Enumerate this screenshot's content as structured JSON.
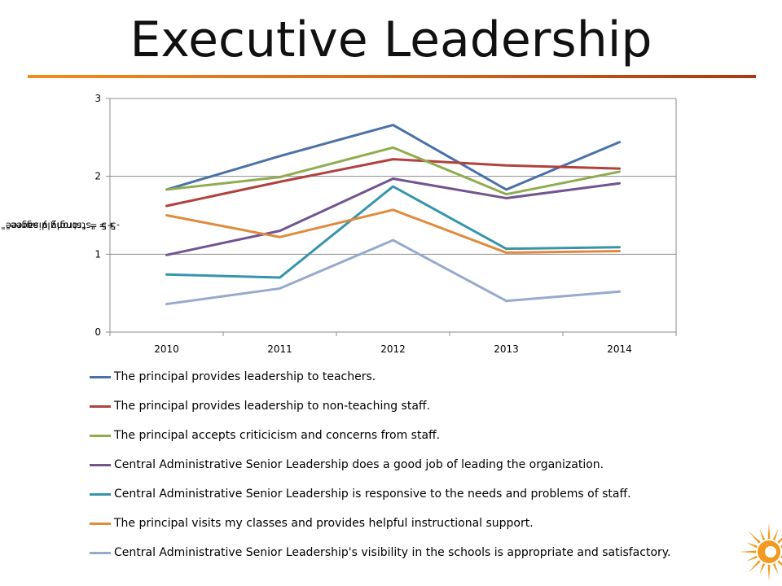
{
  "slide": {
    "title": "Executive Leadership"
  },
  "chart_data": {
    "type": "line",
    "categories": [
      "2010",
      "2011",
      "2012",
      "2013",
      "2014"
    ],
    "ylabel_top": "+5 = \"strongly agree\"",
    "ylabel_bottom": "-5 = \"strongly disagree\"",
    "ylim": [
      0,
      3
    ],
    "yticks": [
      0,
      1,
      2,
      3
    ],
    "grid": true,
    "legend_position": "bottom",
    "series": [
      {
        "name": "The principal provides leadership to teachers.",
        "color": "#4a72a8",
        "values": [
          1.83,
          2.26,
          2.66,
          1.83,
          2.44
        ]
      },
      {
        "name": "The principal provides leadership to non-teaching staff.",
        "color": "#b0413e",
        "values": [
          1.62,
          1.93,
          2.22,
          2.14,
          2.1
        ]
      },
      {
        "name": "The principal accepts criticicism and concerns from staff.",
        "color": "#8fad4e",
        "values": [
          1.83,
          1.99,
          2.37,
          1.77,
          2.06
        ]
      },
      {
        "name": "Central Administrative Senior Leadership does a good job of leading the organization.",
        "color": "#715490",
        "values": [
          0.99,
          1.3,
          1.97,
          1.72,
          1.91
        ]
      },
      {
        "name": "Central Administrative Senior Leadership is responsive to the needs and problems of staff.",
        "color": "#3795ab",
        "values": [
          0.74,
          0.7,
          1.87,
          1.07,
          1.09
        ]
      },
      {
        "name": "The principal visits my classes and provides helpful instructional support.",
        "color": "#e08a3c",
        "values": [
          1.5,
          1.22,
          1.57,
          1.02,
          1.04
        ]
      },
      {
        "name": "Central Administrative Senior Leadership's visibility in the schools is appropriate and satisfactory.",
        "color": "#95aacd",
        "values": [
          0.36,
          0.56,
          1.18,
          0.4,
          0.52
        ]
      }
    ]
  },
  "icons": {
    "logo": "sun-logo-icon"
  },
  "colors": {
    "rule_start": "#f08c1e",
    "rule_end": "#a9380f",
    "logo": "#f29a1f"
  }
}
